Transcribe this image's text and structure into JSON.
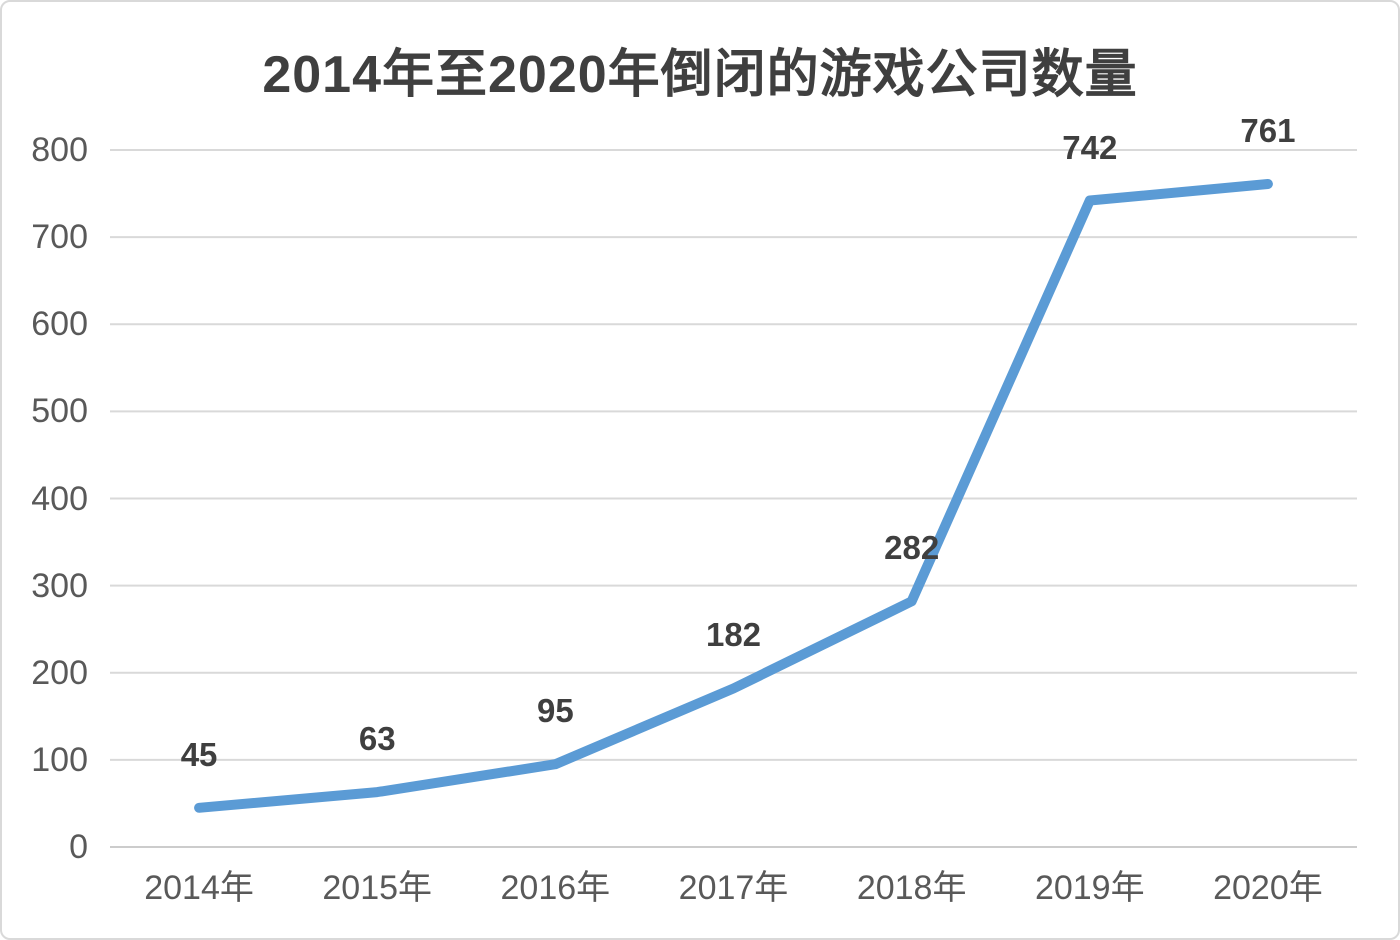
{
  "title": "2014年至2020年倒闭的游戏公司数量",
  "chart_data": {
    "type": "line",
    "title": "2014年至2020年倒闭的游戏公司数量",
    "categories": [
      "2014年",
      "2015年",
      "2016年",
      "2017年",
      "2018年",
      "2019年",
      "2020年"
    ],
    "values": [
      45,
      63,
      95,
      182,
      282,
      742,
      761
    ],
    "data_labels": [
      "45",
      "63",
      "95",
      "182",
      "282",
      "742",
      "761"
    ],
    "xlabel": "",
    "ylabel": "",
    "ylim": [
      0,
      800
    ],
    "y_ticks": [
      0,
      100,
      200,
      300,
      400,
      500,
      600,
      700,
      800
    ],
    "grid": "horizontal",
    "legend": "none"
  },
  "colors": {
    "line": "#5b9bd5",
    "gridline": "#d9d9d9",
    "axis_line": "#cccccc",
    "title_text": "#3f3f3f",
    "tick_text": "#595959",
    "data_label_text": "#3f3f3f",
    "background": "#ffffff",
    "border": "#d9d9d9"
  }
}
